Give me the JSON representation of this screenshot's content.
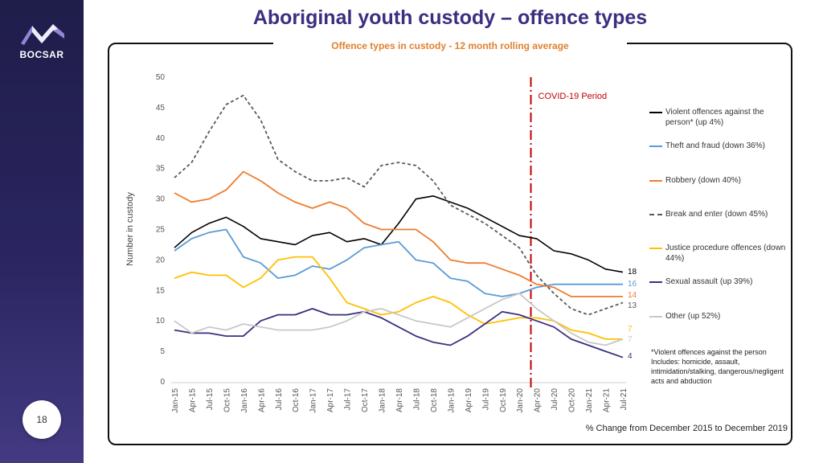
{
  "brand": {
    "logo_text": "BOCSAR",
    "page_number": "18"
  },
  "title": "Aboriginal youth custody – offence types",
  "subtitle": "Offence types in custody - 12 month rolling average",
  "covid_label": "COVID-19 Period",
  "footnote": "*Violent offences against the person Includes: homicide, assault, intimidation/stalking, dangerous/negligent acts and abduction",
  "bottom_note": "% Change from December 2015 to December 2019",
  "colors": {
    "violent": "#000000",
    "theft": "#5b9bd5",
    "robbery": "#ed7d31",
    "break": "#595959",
    "justice": "#ffc000",
    "sexual": "#3b2f80",
    "other": "#c8c8c8",
    "covid": "#c00000",
    "title": "#3b2f80"
  },
  "chart_data": {
    "type": "line",
    "ylabel": "Number in custody",
    "xlabel": "",
    "ylim": [
      0,
      50
    ],
    "yticks": [
      0,
      5,
      10,
      15,
      20,
      25,
      30,
      35,
      40,
      45,
      50
    ],
    "grid": false,
    "legend_position": "right",
    "x_tick_labels": [
      "Jan-15",
      "Apr-15",
      "Jul-15",
      "Oct-15",
      "Jan-16",
      "Apr-16",
      "Jul-16",
      "Oct-16",
      "Jan-17",
      "Apr-17",
      "Jul-17",
      "Oct-17",
      "Jan-18",
      "Apr-18",
      "Jul-18",
      "Oct-18",
      "Jan-19",
      "Apr-19",
      "Jul-19",
      "Oct-19",
      "Jan-20",
      "Apr-20",
      "Jul-20",
      "Oct-20",
      "Jan-21",
      "Apr-21",
      "Jul-21"
    ],
    "covid_start": "Mar-20",
    "series": [
      {
        "name": "Violent offences against the person* (up 4%)",
        "key": "violent",
        "dash": false,
        "end_label": "18",
        "values": [
          22,
          24.5,
          26,
          27,
          25.5,
          23.5,
          23,
          22.5,
          24,
          24.5,
          23,
          23.5,
          22.5,
          26,
          30,
          30.5,
          29.5,
          28.5,
          27,
          25.5,
          24,
          23.5,
          21.5,
          21,
          20,
          18.5,
          18
        ]
      },
      {
        "name": "Theft and fraud (down 36%)",
        "key": "theft",
        "dash": false,
        "end_label": "16",
        "values": [
          21.5,
          23.5,
          24.5,
          25,
          20.5,
          19.5,
          17,
          17.5,
          19,
          18.5,
          20,
          22,
          22.5,
          23,
          20,
          19.5,
          17,
          16.5,
          14.5,
          14,
          14.5,
          15.5,
          16,
          16,
          16,
          16,
          16
        ]
      },
      {
        "name": "Robbery (down 40%)",
        "key": "robbery",
        "dash": false,
        "end_label": "14",
        "values": [
          31,
          29.5,
          30,
          31.5,
          34.5,
          33,
          31,
          29.5,
          28.5,
          29.5,
          28.5,
          26,
          25,
          25,
          25,
          23,
          20,
          19.5,
          19.5,
          18.5,
          17.5,
          16,
          15.5,
          14,
          14,
          14,
          14
        ]
      },
      {
        "name": "Break and enter (down 45%)",
        "key": "break",
        "dash": true,
        "end_label": "13",
        "values": [
          33.5,
          36,
          41,
          45.5,
          47,
          43,
          36.5,
          34.5,
          33,
          33,
          33.5,
          32,
          35.5,
          36,
          35.5,
          33,
          29,
          27.5,
          26,
          24,
          22,
          17.5,
          14.5,
          12,
          11,
          12,
          13
        ]
      },
      {
        "name": "Justice procedure offences (down 44%)",
        "key": "justice",
        "dash": false,
        "end_label": "7",
        "values": [
          17,
          18,
          17.5,
          17.5,
          15.5,
          17,
          20,
          20.5,
          20.5,
          17,
          13,
          12,
          11,
          11.5,
          13,
          14,
          13,
          11,
          9.5,
          10,
          10.5,
          10.5,
          10,
          8.5,
          8,
          7,
          7
        ]
      },
      {
        "name": "Sexual assault (up 39%)",
        "key": "sexual",
        "dash": false,
        "end_label": "4",
        "values": [
          8.5,
          8,
          8,
          7.5,
          7.5,
          10,
          11,
          11,
          12,
          11,
          11,
          11.5,
          10.5,
          9,
          7.5,
          6.5,
          6,
          7.5,
          9.5,
          11.5,
          11,
          10,
          9,
          7,
          6,
          5,
          4
        ]
      },
      {
        "name": "Other (up 52%)",
        "key": "other",
        "dash": false,
        "end_label": "7",
        "values": [
          10,
          8,
          9,
          8.5,
          9.5,
          9,
          8.5,
          8.5,
          8.5,
          9,
          10,
          11.5,
          12,
          11,
          10,
          9.5,
          9,
          10.5,
          12,
          13.5,
          14.5,
          12,
          10,
          8,
          6.5,
          6,
          7
        ]
      }
    ]
  }
}
